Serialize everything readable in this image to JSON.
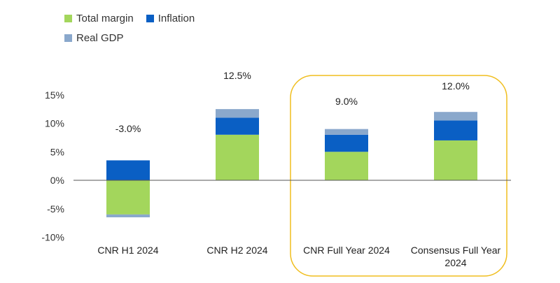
{
  "colors": {
    "total_margin": "#a3d65c",
    "inflation": "#0a5fc4",
    "real_gdp": "#8aa8cc",
    "highlight": "#f0be1e",
    "axis": "#555555"
  },
  "chart_data": {
    "type": "bar",
    "stacked": true,
    "categories": [
      "CNR H1 2024",
      "CNR H2 2024",
      "CNR Full Year 2024",
      "Consensus Full Year 2024"
    ],
    "category_lines": [
      [
        "CNR H1 2024"
      ],
      [
        "CNR H2 2024"
      ],
      [
        "CNR Full Year 2024"
      ],
      [
        "Consensus Full Year",
        "2024"
      ]
    ],
    "series": [
      {
        "key": "total_margin",
        "name": "Total margin",
        "values": [
          -6.0,
          8.0,
          5.0,
          7.0
        ]
      },
      {
        "key": "inflation",
        "name": "Inflation",
        "values": [
          3.5,
          3.0,
          3.0,
          3.5
        ]
      },
      {
        "key": "real_gdp",
        "name": "Real GDP",
        "values": [
          -0.5,
          1.5,
          1.0,
          1.5
        ]
      }
    ],
    "totals": [
      "-3.0%",
      "12.5%",
      "9.0%",
      "12.0%"
    ],
    "y_ticks": [
      15,
      10,
      5,
      0,
      -5,
      -10
    ],
    "y_tick_labels": [
      "15%",
      "10%",
      "5%",
      "0%",
      "-5%",
      "-10%"
    ],
    "ylim": [
      -10,
      15
    ],
    "highlighted_categories": [
      2,
      3
    ],
    "legend_position": "top-left",
    "grid": false
  }
}
